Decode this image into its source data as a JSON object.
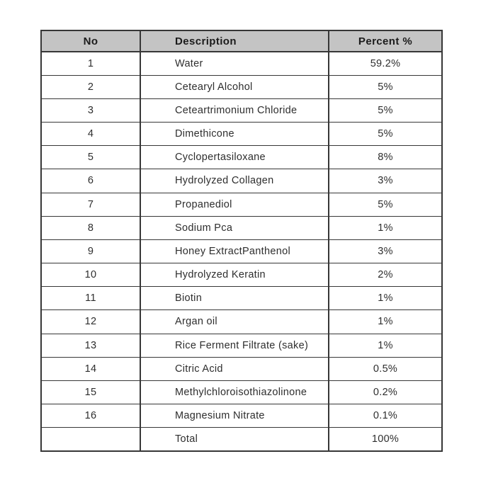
{
  "title": "Ingredient composition table",
  "colors": {
    "background": "#ffffff",
    "header_bg": "#c4c4c4",
    "border": "#373737",
    "text": "#2e2e2e",
    "header_text": "#1b1b1b"
  },
  "table": {
    "headers": {
      "no": "No",
      "description": "Description",
      "percent": "Percent %"
    },
    "rows": [
      {
        "no": "1",
        "description": "Water",
        "percent": "59.2%"
      },
      {
        "no": "2",
        "description": "Cetearyl Alcohol",
        "percent": "5%"
      },
      {
        "no": "3",
        "description": "Ceteartrimonium Chloride",
        "percent": "5%"
      },
      {
        "no": "4",
        "description": "Dimethicone",
        "percent": "5%"
      },
      {
        "no": "5",
        "description": "Cyclopertasiloxane",
        "percent": "8%"
      },
      {
        "no": "6",
        "description": "Hydrolyzed Collagen",
        "percent": "3%"
      },
      {
        "no": "7",
        "description": "Propanediol",
        "percent": "5%"
      },
      {
        "no": "8",
        "description": "Sodium Pca",
        "percent": "1%"
      },
      {
        "no": "9",
        "description": "Honey ExtractPanthenol",
        "percent": "3%"
      },
      {
        "no": "10",
        "description": "Hydrolyzed Keratin",
        "percent": "2%"
      },
      {
        "no": "11",
        "description": "Biotin",
        "percent": "1%"
      },
      {
        "no": "12",
        "description": "Argan oil",
        "percent": "1%"
      },
      {
        "no": "13",
        "description": "Rice Ferment Filtrate (sake)",
        "percent": "1%"
      },
      {
        "no": "14",
        "description": "Citric Acid",
        "percent": "0.5%"
      },
      {
        "no": "15",
        "description": "Methylchloroisothiazolinone",
        "percent": "0.2%"
      },
      {
        "no": "16",
        "description": "Magnesium Nitrate",
        "percent": "0.1%"
      },
      {
        "no": "",
        "description": "Total",
        "percent": "100%"
      }
    ]
  }
}
